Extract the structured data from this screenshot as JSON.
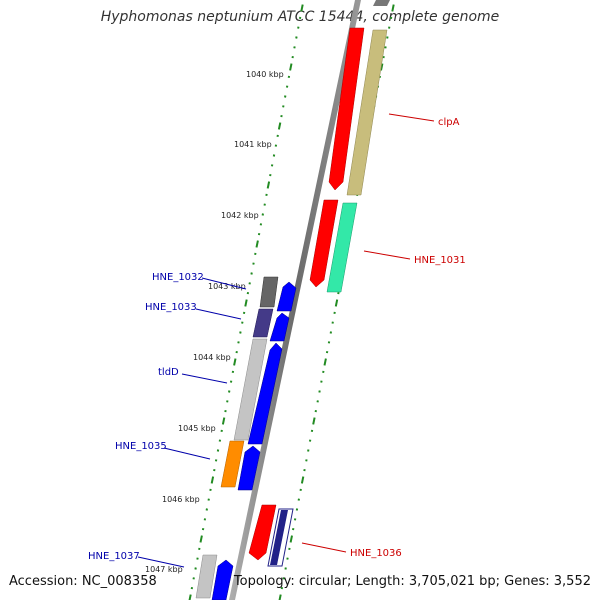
{
  "title": "Hyphomonas neptunium ATCC 15444, complete genome",
  "accession_text": "Accession: NC_008358",
  "topology_text": "Topology: circular; Length: 3,705,021 bp; Genes: 3,552",
  "colors": {
    "backbone": "#808080",
    "tick": "#228b22",
    "forward_label": "#cc0000",
    "reverse_label": "#0000aa",
    "reverse_strand": "#0000ff"
  },
  "scale": {
    "unit": "kbp",
    "labels": [
      "1040 kbp",
      "1041 kbp",
      "1042 kbp",
      "1043 kbp",
      "1044 kbp",
      "1045 kbp",
      "1046 kbp",
      "1047 kbp"
    ]
  },
  "genes": [
    {
      "label": "clpA",
      "strand": "forward",
      "color": "#ff0000",
      "partner_color": "#c8bd7c"
    },
    {
      "label": "HNE_1031",
      "strand": "forward",
      "color": "#ff0000",
      "partner_color": "#33e8a8"
    },
    {
      "label": "HNE_1032",
      "strand": "reverse",
      "color": "#666666",
      "partner_color": "#0000ff"
    },
    {
      "label": "HNE_1033",
      "strand": "reverse",
      "color": "#443a88",
      "partner_color": "#0000ff"
    },
    {
      "label": "tldD",
      "strand": "reverse",
      "color": "#c4c4c4",
      "partner_color": "#0000ff"
    },
    {
      "label": "HNE_1035",
      "strand": "reverse",
      "color": "#ff8c00",
      "partner_color": "#0000ff"
    },
    {
      "label": "HNE_1036",
      "strand": "forward",
      "color": "#ff0000",
      "partner_color": "#222288"
    },
    {
      "label": "HNE_1037",
      "strand": "reverse",
      "color": "#c4c4c4",
      "partner_color": "#0000ff"
    }
  ]
}
